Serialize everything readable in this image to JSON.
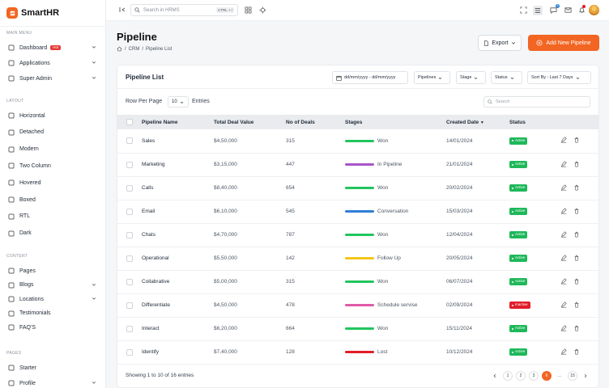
{
  "brand": {
    "name": "SmartHR",
    "accent": "#f26522"
  },
  "sidebar": {
    "sections": [
      {
        "title": "MAIN MENU",
        "items": [
          {
            "label": "Dashboard",
            "icon": "grid-icon",
            "badge": "Hot",
            "chevron": true
          },
          {
            "label": "Applications",
            "icon": "apps-icon",
            "chevron": true
          },
          {
            "label": "Super Admin",
            "icon": "user-star-icon",
            "chevron": true
          }
        ]
      },
      {
        "title": "LAYOUT",
        "items": [
          {
            "label": "Horizontal",
            "icon": "layout-horizontal-icon"
          },
          {
            "label": "Detached",
            "icon": "layout-detached-icon"
          },
          {
            "label": "Modern",
            "icon": "layout-modern-icon"
          },
          {
            "label": "Two Column",
            "icon": "columns-icon"
          },
          {
            "label": "Hovered",
            "icon": "hover-icon"
          },
          {
            "label": "Boxed",
            "icon": "box-icon"
          },
          {
            "label": "RTL",
            "icon": "rtl-icon"
          },
          {
            "label": "Dark",
            "icon": "moon-icon"
          }
        ]
      },
      {
        "title": "CONTENT",
        "items": [
          {
            "label": "Pages",
            "icon": "pages-icon"
          },
          {
            "label": "Blogs",
            "icon": "blog-icon",
            "chevron": true
          },
          {
            "label": "Locations",
            "icon": "map-pin-icon",
            "chevron": true
          },
          {
            "label": "Testimonials",
            "icon": "message-icon"
          },
          {
            "label": "FAQ'S",
            "icon": "question-icon"
          }
        ]
      },
      {
        "title": "PAGES",
        "items": [
          {
            "label": "Starter",
            "icon": "starter-icon"
          },
          {
            "label": "Profile",
            "icon": "profile-icon",
            "chevron": true
          }
        ]
      }
    ]
  },
  "topbar": {
    "search_placeholder": "Search in HRMS",
    "search_shortcut": "CTRL + /",
    "notification_count": "5"
  },
  "page": {
    "title": "Pipeline",
    "breadcrumb": [
      "CRM",
      "Pipeline List"
    ],
    "export_label": "Export",
    "add_label": "Add New Pipeline"
  },
  "list": {
    "title": "Pipeline List",
    "filters": {
      "date_range": "dd/mm/yyyy - dd/mm/yyyy",
      "pipelines": "Pipelines",
      "stage": "Stage",
      "status": "Status",
      "sort": "Sort By : Last 7 Days"
    },
    "rows_per_page_label": "Row Per Page",
    "rows_per_page_value": "10",
    "entries_label": "Entries",
    "search_placeholder": "Search",
    "columns": [
      "Pipeline Name",
      "Total Deal Value",
      "No of Deals",
      "Stages",
      "Created Date",
      "Status"
    ],
    "rows": [
      {
        "name": "Sales",
        "value": "$4,50,000",
        "deals": "315",
        "stage": "Won",
        "stage_color": "#22c55e",
        "date": "14/01/2024",
        "status": "Active"
      },
      {
        "name": "Marketing",
        "value": "$3,15,000",
        "deals": "447",
        "stage": "In Pipeline",
        "stage_color": "#a855c7",
        "date": "21/01/2024",
        "status": "Active"
      },
      {
        "name": "Calls",
        "value": "$8,40,000",
        "deals": "654",
        "stage": "Won",
        "stage_color": "#22c55e",
        "date": "20/02/2024",
        "status": "Active"
      },
      {
        "name": "Email",
        "value": "$6,10,000",
        "deals": "545",
        "stage": "Conversation",
        "stage_color": "#2f7ed8",
        "date": "15/03/2024",
        "status": "Active"
      },
      {
        "name": "Chats",
        "value": "$4,70,000",
        "deals": "787",
        "stage": "Won",
        "stage_color": "#22c55e",
        "date": "12/04/2024",
        "status": "Active"
      },
      {
        "name": "Operational",
        "value": "$5,50,000",
        "deals": "142",
        "stage": "Follow Up",
        "stage_color": "#f5c518",
        "date": "20/05/2024",
        "status": "Active"
      },
      {
        "name": "Collabrative",
        "value": "$5,00,000",
        "deals": "315",
        "stage": "Won",
        "stage_color": "#22c55e",
        "date": "06/07/2024",
        "status": "Active"
      },
      {
        "name": "Differentiate",
        "value": "$4,50,000",
        "deals": "478",
        "stage": "Schedule servise",
        "stage_color": "#e05aa8",
        "date": "02/09/2024",
        "status": "Inactive"
      },
      {
        "name": "Interact",
        "value": "$6,20,000",
        "deals": "664",
        "stage": "Won",
        "stage_color": "#22c55e",
        "date": "15/11/2024",
        "status": "Active"
      },
      {
        "name": "Identify",
        "value": "$7,40,000",
        "deals": "128",
        "stage": "Lost",
        "stage_color": "#e11d2a",
        "date": "10/12/2024",
        "status": "Active"
      }
    ],
    "footer": "Showing 1 to 10 of 16 entries",
    "pagination": [
      "1",
      "2",
      "3",
      "6",
      "...",
      "15"
    ],
    "active_page": "6"
  },
  "colors": {
    "active": "#1fb85a",
    "inactive": "#e11d2a"
  }
}
